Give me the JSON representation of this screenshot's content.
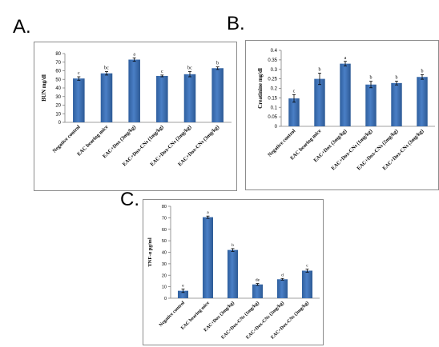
{
  "panels": [
    {
      "letter": "A.",
      "chart_data": {
        "type": "bar",
        "ylabel": "BUN mg/dl",
        "ylim": [
          0,
          80
        ],
        "yticks": [
          0,
          10,
          20,
          30,
          40,
          50,
          60,
          70,
          80
        ],
        "categories": [
          "Negative control",
          "EAC bearing mice",
          "EAC+Dox (3mg/kg)",
          "EAC+Dox-CNs (1mg/kg)",
          "EAC+Dox-CNs (2mg/kg)",
          "EAC+Dox-CNs (3mg/kg)"
        ],
        "values": [
          51,
          57,
          73,
          54,
          56,
          63
        ],
        "errors": [
          2,
          2,
          2,
          1,
          3,
          1.5
        ],
        "sig_letters": [
          "c",
          "bc",
          "a",
          "c",
          "bc",
          "b"
        ],
        "grid": false,
        "bar_color": "#4a7fc6"
      }
    },
    {
      "letter": "B.",
      "chart_data": {
        "type": "bar",
        "ylabel": "Creatinine mg/dl",
        "ylim": [
          0,
          0.4
        ],
        "yticks": [
          "0",
          "0.05",
          "0.1",
          "0.15",
          "0.2",
          "0.25",
          "0.3",
          "0.35",
          "0.4"
        ],
        "categories": [
          "Negative control",
          "EAC bearing mice",
          "EAC+Dox (3mg/kg)",
          "EAC+Dox-CNs (1mg/kg)",
          "EAC+Dox-CNs (2mg/kg)",
          "EAC+Dox-CNs (3mg/kg)"
        ],
        "values": [
          0.147,
          0.25,
          0.33,
          0.22,
          0.228,
          0.26
        ],
        "errors": [
          0.02,
          0.03,
          0.012,
          0.017,
          0.01,
          0.012
        ],
        "sig_letters": [
          "c",
          "b",
          "a",
          "b",
          "b",
          "b"
        ],
        "grid": false,
        "bar_color": "#4a7fc6"
      }
    },
    {
      "letter": "C.",
      "chart_data": {
        "type": "bar",
        "ylabel": "TNF-α pg/ml",
        "ylim": [
          0,
          80
        ],
        "yticks": [
          0,
          10,
          20,
          30,
          40,
          50,
          60,
          70,
          80
        ],
        "categories": [
          "Negative control",
          "EAC bearing mice",
          "EAC+Dox (3mg/kg)",
          "EAC+Dox-CNs (1mg/kg)",
          "EAC+Dox-CNs (2mg/kg)",
          "EAC+Dox-CNs (3mg/kg)"
        ],
        "values": [
          6.5,
          70.5,
          42,
          12,
          16.5,
          24
        ],
        "errors": [
          1.5,
          1,
          1.2,
          0.8,
          0.7,
          1.3
        ],
        "sig_letters": [
          "e",
          "a",
          "b",
          "de",
          "d",
          "c"
        ],
        "grid": false,
        "bar_color": "#4a7fc6"
      }
    }
  ]
}
